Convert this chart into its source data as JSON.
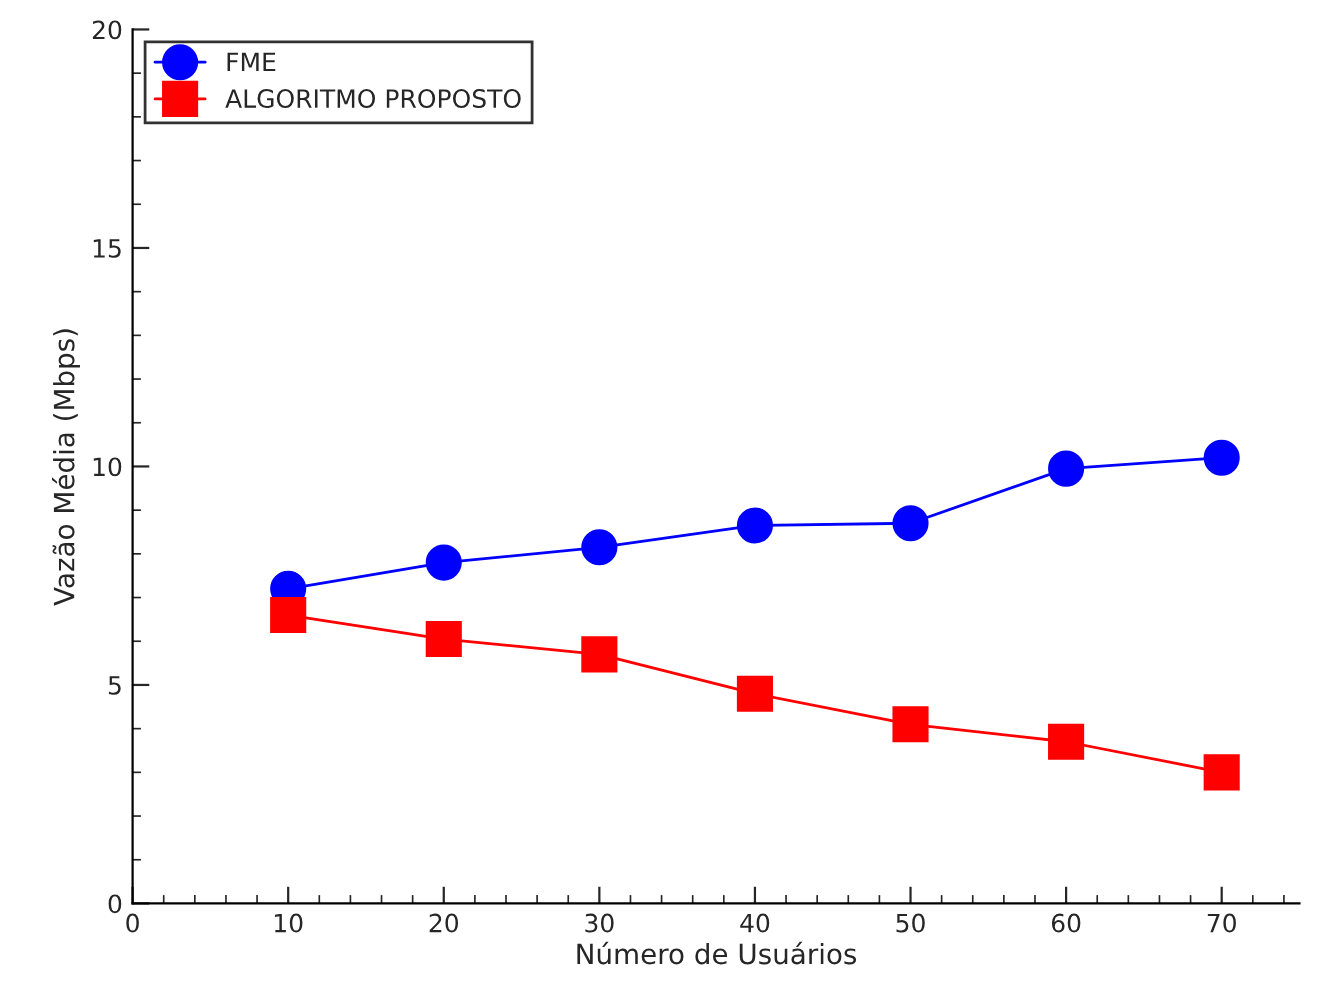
{
  "chart_data": {
    "type": "line",
    "xlabel": "Número de Usuários",
    "ylabel": "Vazão Média (Mbps)",
    "x": [
      10,
      20,
      30,
      40,
      50,
      60,
      70
    ],
    "series": [
      {
        "name": "FME",
        "color": "#0000ff",
        "marker": "circle",
        "values": [
          7.2,
          7.8,
          8.15,
          8.65,
          8.7,
          9.95,
          10.2
        ]
      },
      {
        "name": "ALGORITMO PROPOSTO",
        "color": "#ff0000",
        "marker": "square",
        "values": [
          6.6,
          6.05,
          5.7,
          4.8,
          4.1,
          3.7,
          3.0
        ]
      }
    ],
    "xlim": [
      0,
      75
    ],
    "xticks": [
      0,
      10,
      20,
      30,
      40,
      50,
      60,
      70
    ],
    "ylim": [
      0,
      20
    ],
    "yticks": [
      0,
      5,
      10,
      15,
      20
    ],
    "grid": false,
    "legend": "top left",
    "line_style": "solid"
  }
}
